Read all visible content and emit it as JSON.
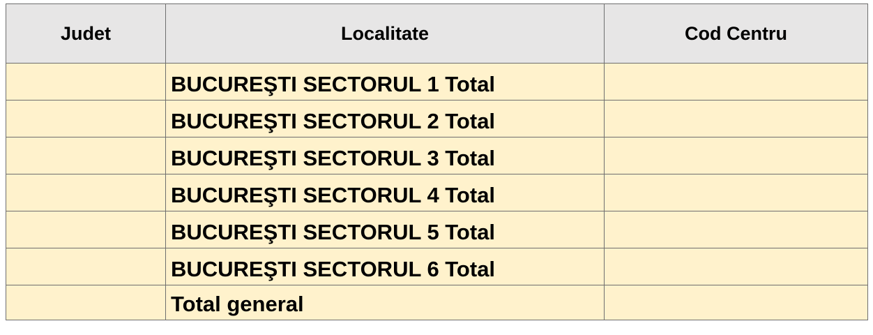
{
  "table": {
    "columns": [
      "Judet",
      "Localitate",
      "Cod Centru"
    ],
    "rows": [
      "BUCUREŞTI SECTORUL 1 Total",
      "BUCUREŞTI SECTORUL 2 Total",
      "BUCUREŞTI SECTORUL 3 Total",
      "BUCUREŞTI SECTORUL 4 Total",
      "BUCUREŞTI SECTORUL 5 Total",
      "BUCUREŞTI SECTORUL 6 Total",
      "Total general"
    ]
  }
}
